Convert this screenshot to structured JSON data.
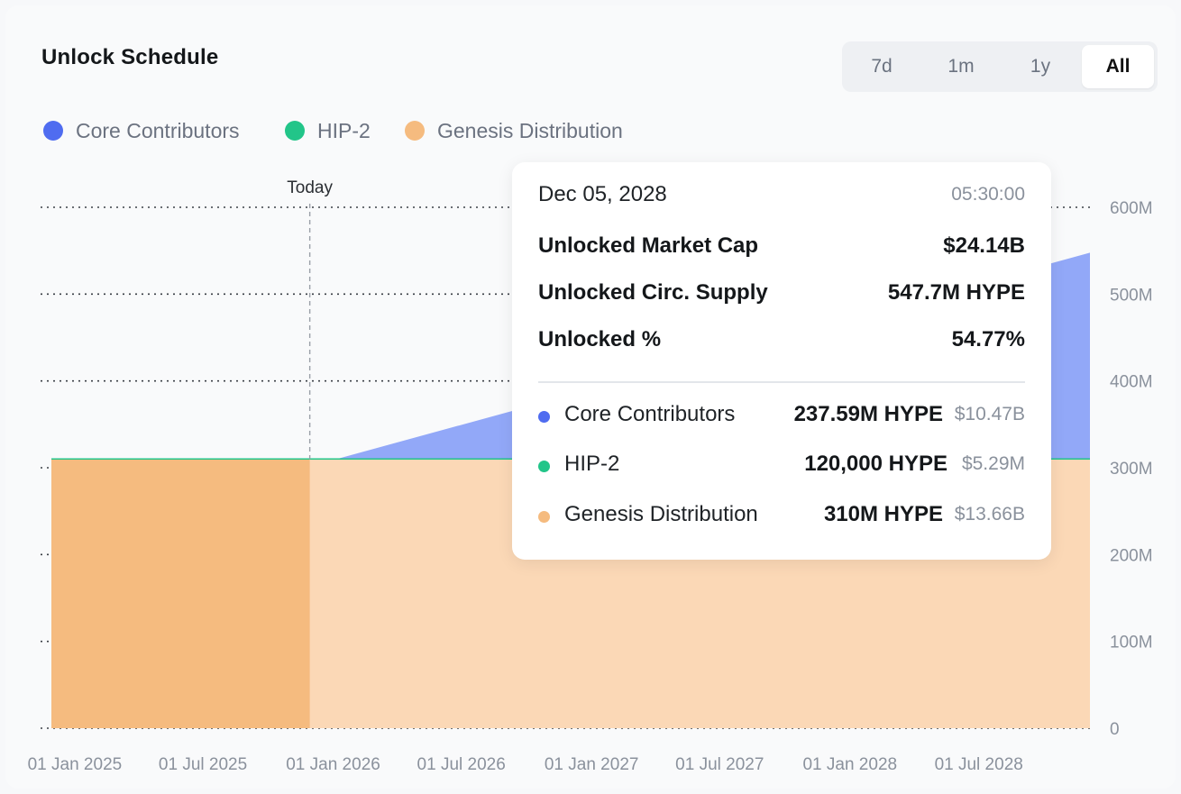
{
  "title": "Unlock Schedule",
  "range_options": [
    "7d",
    "1m",
    "1y",
    "All"
  ],
  "range_selected": "All",
  "legend": [
    {
      "label": "Core Contributors",
      "color": "#4f6cf0"
    },
    {
      "label": "HIP-2",
      "color": "#22c589"
    },
    {
      "label": "Genesis Distribution",
      "color": "#f5bb7f"
    }
  ],
  "today_label": "Today",
  "tooltip": {
    "date": "Dec 05, 2028",
    "time": "05:30:00",
    "market_cap_label": "Unlocked Market Cap",
    "market_cap_value": "$24.14B",
    "circ_supply_label": "Unlocked Circ. Supply",
    "circ_supply_value": "547.7M HYPE",
    "unlocked_pct_label": "Unlocked %",
    "unlocked_pct_value": "54.77%",
    "series": [
      {
        "name": "Core Contributors",
        "amount": "237.59M HYPE",
        "usd": "$10.47B",
        "color": "#4f6cf0"
      },
      {
        "name": "HIP-2",
        "amount": "120,000 HYPE",
        "usd": "$5.29M",
        "color": "#22c589"
      },
      {
        "name": "Genesis Distribution",
        "amount": "310M HYPE",
        "usd": "$13.66B",
        "color": "#f5bb7f"
      }
    ]
  },
  "chart_data": {
    "type": "area",
    "stacked": true,
    "y_tick_labels": [
      "0",
      "100M",
      "200M",
      "300M",
      "400M",
      "500M",
      "600M"
    ],
    "ylim": [
      0,
      600
    ],
    "y_unit": "M",
    "x_tick_labels": [
      "01 Jan 2025",
      "01 Jul 2025",
      "01 Jan 2026",
      "01 Jul 2026",
      "01 Jan 2027",
      "01 Jul 2027",
      "01 Jan 2028",
      "01 Jul 2028"
    ],
    "x_range": [
      "2024-11-29",
      "2028-12-05"
    ],
    "today": "2025-11-29",
    "grid": true,
    "series": [
      {
        "name": "Genesis Distribution",
        "color": "#f5bb7f",
        "points": [
          [
            "2024-11-29",
            310
          ],
          [
            "2028-12-05",
            310
          ]
        ]
      },
      {
        "name": "HIP-2",
        "color": "#22c589",
        "points": [
          [
            "2024-11-29",
            0.12
          ],
          [
            "2028-12-05",
            0.12
          ]
        ]
      },
      {
        "name": "Core Contributors",
        "color": "#4f6cf0",
        "points": [
          [
            "2024-11-29",
            0
          ],
          [
            "2026-01-06",
            0
          ],
          [
            "2028-12-05",
            237.59
          ]
        ]
      }
    ]
  }
}
